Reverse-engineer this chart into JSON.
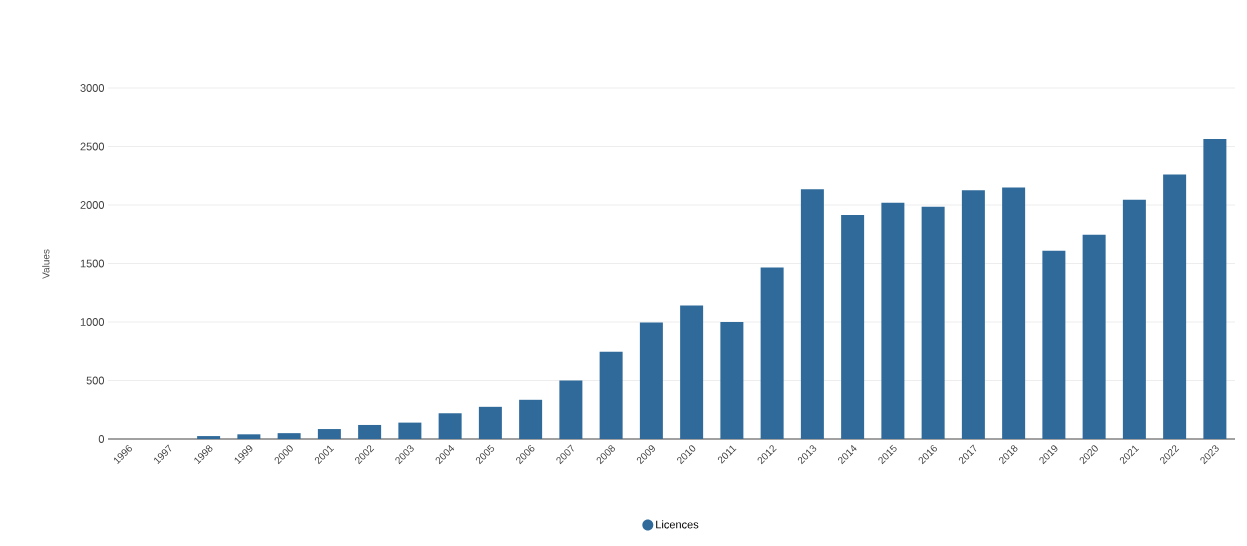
{
  "chart_data": {
    "type": "bar",
    "ylabel": "Values",
    "categories": [
      "1996",
      "1997",
      "1998",
      "1999",
      "2000",
      "2001",
      "2002",
      "2003",
      "2004",
      "2005",
      "2006",
      "2007",
      "2008",
      "2009",
      "2010",
      "2011",
      "2012",
      "2013",
      "2014",
      "2015",
      "2016",
      "2017",
      "2018",
      "2019",
      "2020",
      "2021",
      "2022",
      "2023"
    ],
    "series": [
      {
        "name": "Licences",
        "color": "#2f6a9a",
        "values": [
          null,
          null,
          25,
          40,
          50,
          85,
          120,
          140,
          220,
          275,
          335,
          500,
          745,
          995,
          1140,
          1000,
          1465,
          2135,
          1915,
          2020,
          1985,
          2125,
          2150,
          1610,
          1745,
          2045,
          2260,
          2565
        ]
      }
    ],
    "ylim": [
      0,
      3000
    ],
    "yticks": [
      0,
      500,
      1000,
      1500,
      2000,
      2500,
      3000
    ],
    "grid": "y",
    "legend": "bottom"
  }
}
